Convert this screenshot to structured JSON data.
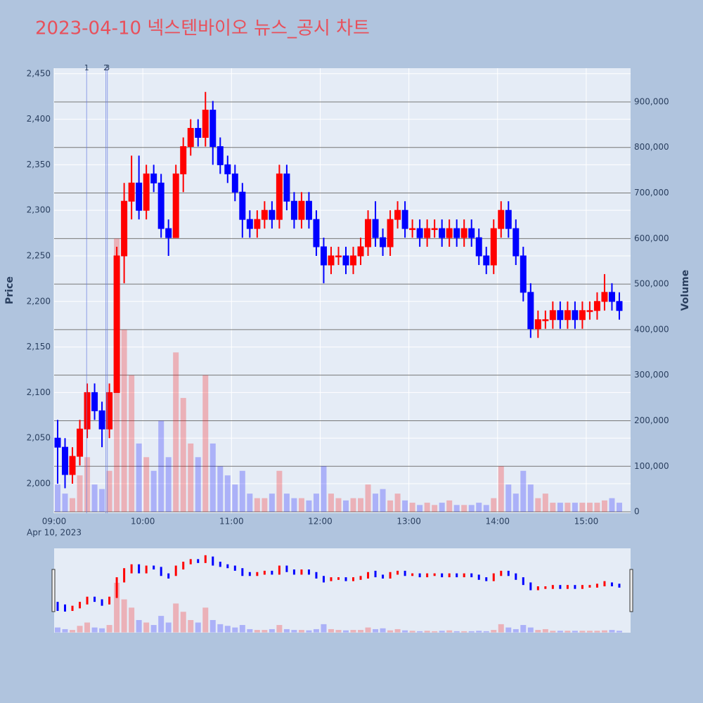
{
  "chart_data": {
    "type": "candlestick",
    "title": "2023-04-10 넥스텐바이오 뉴스_공시 차트",
    "y_label": "Price",
    "y2_label": "Volume",
    "x_date_label": "Apr 10, 2023",
    "increasing_color": "#ff0000",
    "decreasing_color": "#0000ff",
    "x": [
      "09:00",
      "09:05",
      "09:10",
      "09:15",
      "09:20",
      "09:25",
      "09:30",
      "09:35",
      "09:40",
      "09:45",
      "09:50",
      "09:55",
      "10:00",
      "10:05",
      "10:10",
      "10:15",
      "10:20",
      "10:25",
      "10:30",
      "10:35",
      "10:40",
      "10:45",
      "10:50",
      "10:55",
      "11:00",
      "11:05",
      "11:10",
      "11:15",
      "11:20",
      "11:25",
      "11:30",
      "11:35",
      "11:40",
      "11:45",
      "11:50",
      "11:55",
      "12:00",
      "12:05",
      "12:10",
      "12:15",
      "12:20",
      "12:25",
      "12:30",
      "12:35",
      "12:40",
      "12:45",
      "12:50",
      "12:55",
      "13:00",
      "13:05",
      "13:10",
      "13:15",
      "13:20",
      "13:25",
      "13:30",
      "13:35",
      "13:40",
      "13:45",
      "13:50",
      "13:55",
      "14:00",
      "14:05",
      "14:10",
      "14:15",
      "14:20",
      "14:25",
      "14:30",
      "14:35",
      "14:40",
      "14:45",
      "14:50",
      "14:55",
      "15:00",
      "15:05",
      "15:10",
      "15:15",
      "15:20"
    ],
    "open": [
      2050,
      2040,
      2010,
      2030,
      2060,
      2100,
      2080,
      2060,
      2100,
      2250,
      2310,
      2330,
      2300,
      2340,
      2330,
      2280,
      2270,
      2340,
      2370,
      2390,
      2380,
      2410,
      2370,
      2350,
      2340,
      2320,
      2290,
      2280,
      2290,
      2300,
      2290,
      2340,
      2310,
      2290,
      2310,
      2290,
      2260,
      2240,
      2250,
      2250,
      2240,
      2250,
      2260,
      2290,
      2270,
      2260,
      2290,
      2300,
      2280,
      2280,
      2270,
      2280,
      2280,
      2270,
      2280,
      2270,
      2280,
      2270,
      2250,
      2240,
      2280,
      2300,
      2280,
      2250,
      2210,
      2170,
      2180,
      2180,
      2190,
      2180,
      2190,
      2180,
      2190,
      2190,
      2200,
      2210,
      2200
    ],
    "high": [
      2070,
      2050,
      2040,
      2070,
      2110,
      2110,
      2090,
      2110,
      2260,
      2330,
      2360,
      2360,
      2350,
      2350,
      2340,
      2290,
      2350,
      2380,
      2400,
      2400,
      2430,
      2420,
      2380,
      2360,
      2350,
      2330,
      2300,
      2300,
      2310,
      2310,
      2350,
      2350,
      2320,
      2320,
      2320,
      2300,
      2270,
      2260,
      2260,
      2260,
      2260,
      2270,
      2300,
      2310,
      2280,
      2300,
      2310,
      2310,
      2290,
      2290,
      2290,
      2290,
      2290,
      2290,
      2290,
      2290,
      2290,
      2280,
      2260,
      2290,
      2310,
      2310,
      2290,
      2260,
      2220,
      2190,
      2190,
      2200,
      2200,
      2200,
      2200,
      2200,
      2200,
      2210,
      2230,
      2220,
      2210
    ],
    "low": [
      2000,
      1995,
      2000,
      2020,
      2050,
      2070,
      2040,
      2050,
      2100,
      2220,
      2290,
      2290,
      2290,
      2320,
      2270,
      2250,
      2270,
      2320,
      2360,
      2370,
      2370,
      2350,
      2340,
      2330,
      2310,
      2270,
      2270,
      2270,
      2280,
      2280,
      2280,
      2300,
      2280,
      2280,
      2280,
      2250,
      2220,
      2230,
      2240,
      2230,
      2230,
      2240,
      2250,
      2260,
      2250,
      2250,
      2280,
      2270,
      2270,
      2260,
      2260,
      2270,
      2260,
      2260,
      2260,
      2260,
      2260,
      2240,
      2230,
      2230,
      2270,
      2270,
      2240,
      2200,
      2160,
      2160,
      2170,
      2170,
      2170,
      2170,
      2170,
      2170,
      2180,
      2180,
      2190,
      2190,
      2180
    ],
    "close": [
      2040,
      2010,
      2030,
      2060,
      2100,
      2080,
      2060,
      2100,
      2250,
      2310,
      2330,
      2300,
      2340,
      2330,
      2280,
      2270,
      2340,
      2370,
      2390,
      2380,
      2410,
      2370,
      2350,
      2340,
      2320,
      2290,
      2280,
      2290,
      2300,
      2290,
      2340,
      2310,
      2290,
      2310,
      2290,
      2260,
      2240,
      2250,
      2250,
      2240,
      2250,
      2260,
      2290,
      2270,
      2260,
      2290,
      2300,
      2280,
      2280,
      2270,
      2280,
      2280,
      2270,
      2280,
      2270,
      2280,
      2270,
      2250,
      2240,
      2280,
      2300,
      2280,
      2250,
      2210,
      2170,
      2180,
      2180,
      2190,
      2180,
      2190,
      2180,
      2190,
      2190,
      2200,
      2210,
      2200,
      2190
    ],
    "volume": [
      60000,
      40000,
      30000,
      80000,
      120000,
      60000,
      50000,
      90000,
      600000,
      400000,
      300000,
      150000,
      120000,
      90000,
      200000,
      120000,
      350000,
      250000,
      150000,
      120000,
      300000,
      150000,
      100000,
      80000,
      60000,
      90000,
      40000,
      30000,
      30000,
      40000,
      90000,
      40000,
      30000,
      30000,
      25000,
      40000,
      100000,
      40000,
      30000,
      25000,
      30000,
      30000,
      60000,
      40000,
      50000,
      25000,
      40000,
      25000,
      20000,
      15000,
      20000,
      15000,
      20000,
      25000,
      15000,
      15000,
      15000,
      20000,
      15000,
      30000,
      100000,
      60000,
      40000,
      90000,
      60000,
      30000,
      40000,
      20000,
      20000,
      20000,
      20000,
      20000,
      20000,
      20000,
      25000,
      30000,
      20000
    ],
    "annotations": [
      {
        "x": "09:22",
        "text": "1"
      },
      {
        "x": "09:35",
        "text": "2"
      },
      {
        "x": "09:36",
        "text": "3"
      }
    ],
    "xlim": [
      "09:00",
      "15:30"
    ],
    "xticks": [
      "09:00",
      "10:00",
      "11:00",
      "12:00",
      "13:00",
      "14:00",
      "15:00"
    ],
    "ylim": [
      1967.6,
      2456
    ],
    "yticks": [
      {
        "value": 2000,
        "label": "2,000"
      },
      {
        "value": 2050,
        "label": "2,050"
      },
      {
        "value": 2100,
        "label": "2,100"
      },
      {
        "value": 2150,
        "label": "2,150"
      },
      {
        "value": 2200,
        "label": "2,200"
      },
      {
        "value": 2250,
        "label": "2,250"
      },
      {
        "value": 2300,
        "label": "2,300"
      },
      {
        "value": 2350,
        "label": "2,350"
      },
      {
        "value": 2400,
        "label": "2,400"
      },
      {
        "value": 2450,
        "label": "2,450"
      }
    ],
    "y2lim": [
      -3000,
      974000
    ],
    "y2ticks": [
      0,
      {
        "value": 100000,
        "label": "100,000"
      },
      {
        "value": 200000,
        "label": "200,000"
      },
      {
        "value": 300000,
        "label": "300,000"
      },
      {
        "value": 400000,
        "label": "400,000"
      },
      {
        "value": 500000,
        "label": "500,000"
      },
      {
        "value": 600000,
        "label": "600,000"
      },
      {
        "value": 700000,
        "label": "700,000"
      },
      {
        "value": 800000,
        "label": "800,000"
      },
      {
        "value": 900000,
        "label": "900,000"
      }
    ],
    "grid": true,
    "range_slider": true
  }
}
